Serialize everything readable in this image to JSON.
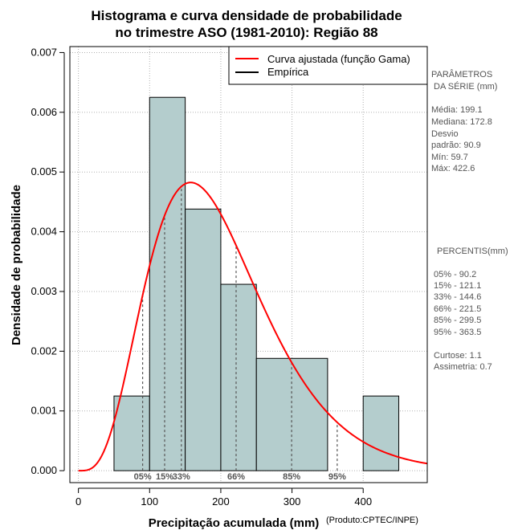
{
  "chart_data": {
    "type": "bar",
    "title_lines": [
      "Histograma e curva densidade de probabilidade",
      "no trimestre ASO (1981-2010): Região 88"
    ],
    "xlabel": "Precipitação acumulada (mm)",
    "ylabel": "Densidade de probabilidade",
    "credit": "(Produto:CPTEC/INPE)",
    "xlim": [
      -12,
      490
    ],
    "ylim": [
      -0.0002,
      0.0071
    ],
    "x_ticks": [
      0,
      100,
      200,
      300,
      400
    ],
    "y_ticks": [
      0.0,
      0.001,
      0.002,
      0.003,
      0.004,
      0.005,
      0.006,
      0.007
    ],
    "y_tick_labels": [
      "0.000",
      "0.001",
      "0.002",
      "0.003",
      "0.004",
      "0.005",
      "0.006",
      "0.007"
    ],
    "grid": true,
    "bins": [
      {
        "start": 50,
        "end": 100,
        "density": 0.00125
      },
      {
        "start": 100,
        "end": 150,
        "density": 0.00625
      },
      {
        "start": 150,
        "end": 200,
        "density": 0.00438
      },
      {
        "start": 200,
        "end": 250,
        "density": 0.00312
      },
      {
        "start": 250,
        "end": 350,
        "density": 0.00188
      },
      {
        "start": 350,
        "end": 400,
        "density": 0.0
      },
      {
        "start": 400,
        "end": 450,
        "density": 0.00125
      }
    ],
    "fitted_curve": {
      "name": "Curva ajustada (função Gama)",
      "color": "#ff0000",
      "distribution": "gamma",
      "shape": 4.8,
      "scale": 41.5,
      "x_range": [
        0,
        490
      ]
    },
    "percentiles": [
      {
        "label": "05%",
        "value": 90.2
      },
      {
        "label": "15%",
        "value": 121.1
      },
      {
        "label": "33%",
        "value": 144.6
      },
      {
        "label": "66%",
        "value": 221.5
      },
      {
        "label": "85%",
        "value": 299.5
      },
      {
        "label": "95%",
        "value": 363.5
      }
    ],
    "legend": {
      "placement": "top-right",
      "entries": [
        {
          "label": "Curva ajustada (função Gama)",
          "color": "#ff0000"
        },
        {
          "label": "Empírica",
          "color": "#000000"
        }
      ]
    },
    "colors": {
      "bar_fill": "#b4cdcd",
      "bar_stroke": "#000000",
      "grid": "#b0b0b0",
      "percentile_line": "#555555"
    }
  },
  "side_panel": {
    "params_title_lines": [
      "PARÂMETROS",
      "DA SÉRIE (mm)"
    ],
    "params_lines": [
      "Média:  199.1",
      "Mediana:  172.8",
      "Desvio",
      "padrão:  90.9",
      "Mín:  59.7",
      "Máx:  422.6"
    ],
    "percentis_title": "PERCENTIS(mm)",
    "percentis_lines": [
      "05% -  90.2",
      "15% -  121.1",
      "33% -  144.6",
      "66% -  221.5",
      "85% -  299.5",
      "95% -  363.5"
    ],
    "stats_lines": [
      "Curtose:  1.1",
      "Assimetria:  0.7"
    ]
  }
}
